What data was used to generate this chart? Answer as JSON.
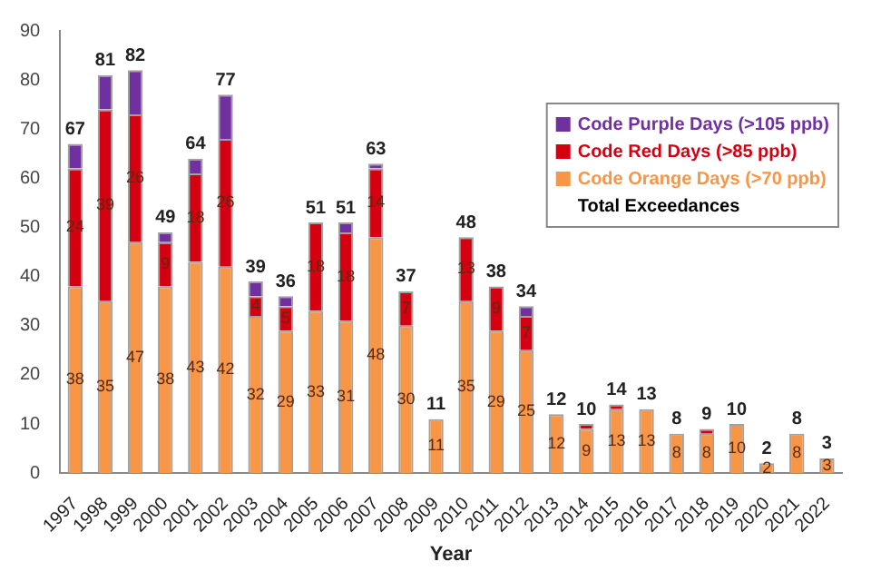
{
  "chart_data": {
    "type": "bar",
    "stacked": true,
    "xlabel": "Year",
    "categories": [
      "1997",
      "1998",
      "1999",
      "2000",
      "2001",
      "2002",
      "2003",
      "2004",
      "2005",
      "2006",
      "2007",
      "2008",
      "2009",
      "2010",
      "2011",
      "2012",
      "2013",
      "2014",
      "2015",
      "2016",
      "2017",
      "2018",
      "2019",
      "2020",
      "2021",
      "2022"
    ],
    "series": [
      {
        "name": "Code Orange Days (>70 ppb)",
        "color": "#f79646",
        "values": [
          38,
          35,
          47,
          38,
          43,
          42,
          32,
          29,
          33,
          31,
          48,
          30,
          11,
          35,
          29,
          25,
          12,
          9,
          13,
          13,
          8,
          8,
          10,
          2,
          8,
          3
        ],
        "value_labels": [
          "38",
          "35",
          "47",
          "38",
          "43",
          "42",
          "32",
          "29",
          "33",
          "31",
          "48",
          "30",
          "11",
          "35",
          "29",
          "25",
          "12",
          "9",
          "13",
          "13",
          "8",
          "8",
          "10",
          "2",
          "8",
          "3"
        ]
      },
      {
        "name": "Code Red Days (>85 ppb)",
        "color": "#d40012",
        "values": [
          24,
          39,
          26,
          9,
          18,
          26,
          4,
          5,
          18,
          18,
          14,
          7,
          0,
          13,
          9,
          7,
          0,
          1,
          1,
          0,
          0,
          1,
          0,
          0,
          0,
          0
        ],
        "value_labels": [
          "24",
          "39",
          "26",
          "9",
          "18",
          "26",
          "4",
          "5",
          "18",
          "18",
          "14",
          "7",
          null,
          "13",
          "9",
          "7",
          null,
          null,
          null,
          null,
          null,
          null,
          null,
          null,
          null,
          null
        ]
      },
      {
        "name": "Code Purple Days (>105 ppb)",
        "color": "#7030a0",
        "values": [
          5,
          7,
          9,
          2,
          3,
          9,
          3,
          2,
          0,
          2,
          1,
          0,
          0,
          0,
          0,
          2,
          0,
          0,
          0,
          0,
          0,
          0,
          0,
          0,
          0,
          0
        ]
      }
    ],
    "totals": [
      "67",
      "81",
      "82",
      "49",
      "64",
      "77",
      "39",
      "36",
      "51",
      "51",
      "63",
      "37",
      "11",
      "48",
      "38",
      "34",
      "12",
      "10",
      "14",
      "13",
      "8",
      "9",
      "10",
      "2",
      "8",
      "3"
    ],
    "annotations": [
      "Total Exceedances"
    ],
    "ylim": [
      0,
      90
    ],
    "yticks": [
      0,
      10,
      20,
      30,
      40,
      50,
      60,
      70,
      80,
      90
    ],
    "grid": false,
    "legend": "top right"
  }
}
